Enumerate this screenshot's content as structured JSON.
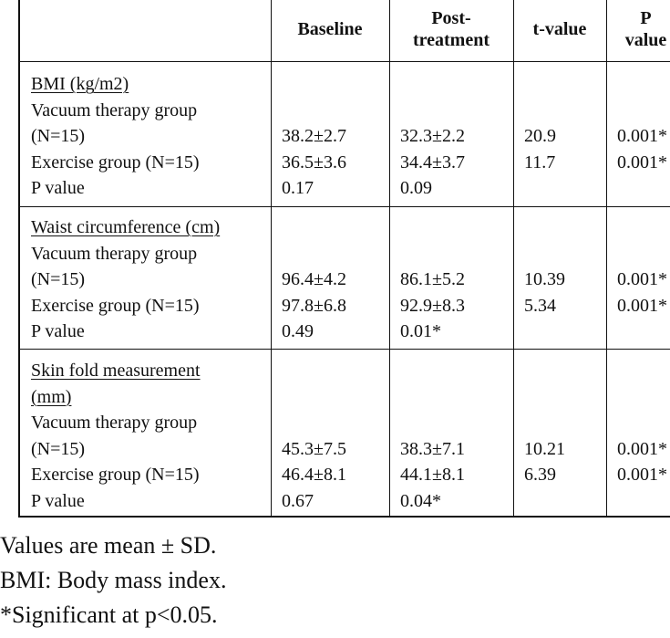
{
  "header": {
    "col_baseline": "Baseline",
    "col_post_line1": "Post-",
    "col_post_line2": "treatment",
    "col_t": "t-value",
    "col_p_line1": "P",
    "col_p_line2": "value"
  },
  "sections": [
    {
      "title": "BMI (kg/m2)",
      "title_line2": "",
      "vacuum_label_line1": "Vacuum therapy group",
      "vacuum_label_line2": "(N=15)",
      "exercise_label": "Exercise group (N=15)",
      "pvalue_label": "P value",
      "vacuum": {
        "baseline": "38.2±2.7",
        "post": "32.3±2.2",
        "t": "20.9",
        "p": "0.001*"
      },
      "exercise": {
        "baseline": "36.5±3.6",
        "post": "34.4±3.7",
        "t": "11.7",
        "p": "0.001*"
      },
      "between": {
        "baseline": "0.17",
        "post": "0.09"
      }
    },
    {
      "title": "Waist circumference (cm)",
      "title_line2": "",
      "vacuum_label_line1": "Vacuum therapy group",
      "vacuum_label_line2": "(N=15)",
      "exercise_label": "Exercise group (N=15)",
      "pvalue_label": "P value",
      "vacuum": {
        "baseline": "96.4±4.2",
        "post": "86.1±5.2",
        "t": "10.39",
        "p": "0.001*"
      },
      "exercise": {
        "baseline": "97.8±6.8",
        "post": "92.9±8.3",
        "t": "5.34",
        "p": "0.001*"
      },
      "between": {
        "baseline": "0.49",
        "post": "0.01*"
      }
    },
    {
      "title": "Skin fold measurement ",
      "title_line2": "(mm)",
      "vacuum_label_line1": "Vacuum therapy group",
      "vacuum_label_line2": "(N=15)",
      "exercise_label": "Exercise group (N=15)",
      "pvalue_label": "P value",
      "vacuum": {
        "baseline": "45.3±7.5",
        "post": "38.3±7.1",
        "t": "10.21",
        "p": "0.001*"
      },
      "exercise": {
        "baseline": "46.4±8.1",
        "post": "44.1±8.1",
        "t": "6.39",
        "p": "0.001*"
      },
      "between": {
        "baseline": "0.67",
        "post": "0.04*"
      }
    }
  ],
  "footnotes": {
    "line1": "Values are mean ± SD.",
    "line2": "BMI: Body mass index.",
    "line3": "*Significant at p<0.05."
  }
}
